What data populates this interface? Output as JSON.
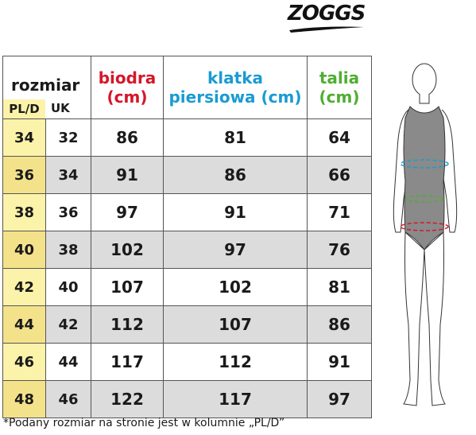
{
  "brand": {
    "name": "ZOGGS"
  },
  "header": {
    "rozmiar": "rozmiar",
    "pl_d": "PL/D",
    "uk": "UK",
    "biodra_line1": "biodra",
    "biodra_line2": "(cm)",
    "klatka_line1": "klatka",
    "klatka_line2": "piersiowa (cm)",
    "talia_line1": "talia",
    "talia_line2": "(cm)"
  },
  "rows": [
    {
      "pl": "34",
      "uk": "32",
      "biodra": "86",
      "klatka": "81",
      "talia": "64"
    },
    {
      "pl": "36",
      "uk": "34",
      "biodra": "91",
      "klatka": "86",
      "talia": "66"
    },
    {
      "pl": "38",
      "uk": "36",
      "biodra": "97",
      "klatka": "91",
      "talia": "71"
    },
    {
      "pl": "40",
      "uk": "38",
      "biodra": "102",
      "klatka": "97",
      "talia": "76"
    },
    {
      "pl": "42",
      "uk": "40",
      "biodra": "107",
      "klatka": "102",
      "talia": "81"
    },
    {
      "pl": "44",
      "uk": "42",
      "biodra": "112",
      "klatka": "107",
      "talia": "86"
    },
    {
      "pl": "46",
      "uk": "44",
      "biodra": "117",
      "klatka": "112",
      "talia": "91"
    },
    {
      "pl": "48",
      "uk": "46",
      "biodra": "122",
      "klatka": "117",
      "talia": "97"
    }
  ],
  "footnote": "*Podany rozmiar na stronie jest w kolumnie „PL/D”",
  "colors": {
    "red": "#d4172a",
    "blue": "#1a9bd2",
    "green": "#4fae31",
    "yellow": "#fbf3a9",
    "grey": "#dcdcdc"
  }
}
